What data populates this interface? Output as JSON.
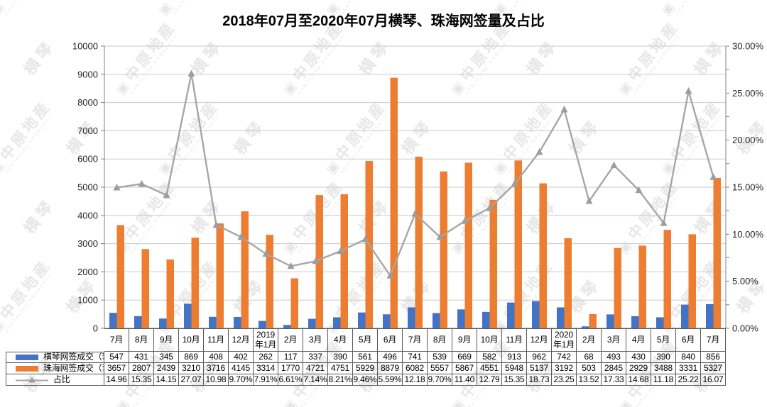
{
  "title": "2018年07月至2020年07月横琴、珠海网签量及占比",
  "watermark": {
    "logo_icon": "watermark-logo-icon",
    "brand": "中原地産",
    "brand_sub": "CENTALINE PROPERTY",
    "region": "横琴",
    "color": "#e7e7e7"
  },
  "colors": {
    "hengqin_bar": "#4472C4",
    "zhuhai_bar": "#ED7D31",
    "ratio_line": "#A6A6A6",
    "ratio_marker": "#9D9D9D",
    "gridline": "#C9C9C9",
    "axis_line": "#808080",
    "axis_text": "#262626",
    "table_border": "#595959"
  },
  "chart_data": {
    "type": "bar",
    "subtype": "combo-bar-line-dual-axis",
    "title": "2018年07月至2020年07月横琴、珠海网签量及占比",
    "categories": [
      "7月",
      "8月",
      "9月",
      "10月",
      "11月",
      "12月",
      "2019年1月",
      "2月",
      "3月",
      "4月",
      "5月",
      "6月",
      "7月",
      "8月",
      "9月",
      "10月",
      "11月",
      "12月",
      "2020年1月",
      "2月",
      "3月",
      "4月",
      "5月",
      "6月",
      "7月"
    ],
    "series": [
      {
        "name": "横琴网签成交（套）",
        "type": "bar",
        "axis": "left",
        "color": "#4472C4",
        "values": [
          547,
          431,
          345,
          869,
          408,
          402,
          262,
          117,
          337,
          390,
          561,
          496,
          741,
          539,
          669,
          582,
          913,
          962,
          742,
          68,
          493,
          430,
          390,
          840,
          856
        ]
      },
      {
        "name": "珠海网签成交（套）",
        "type": "bar",
        "axis": "left",
        "color": "#ED7D31",
        "values": [
          3657,
          2807,
          2439,
          3210,
          3716,
          4145,
          3314,
          1770,
          4721,
          4751,
          5929,
          8879,
          6082,
          5557,
          5867,
          4551,
          5948,
          5137,
          3192,
          503,
          2845,
          2929,
          3488,
          3331,
          5327
        ]
      },
      {
        "name": "占比",
        "type": "line",
        "axis": "right",
        "color": "#A6A6A6",
        "marker": "triangle",
        "values": [
          14.96,
          15.35,
          14.15,
          27.07,
          10.98,
          9.7,
          7.91,
          6.61,
          7.14,
          8.21,
          9.46,
          5.59,
          12.18,
          9.7,
          11.4,
          12.79,
          15.35,
          18.73,
          23.25,
          13.52,
          17.33,
          14.68,
          11.18,
          25.22,
          16.07
        ],
        "display": [
          "14.96",
          "15.35",
          "14.15",
          "27.07",
          "10.98",
          "9.70%",
          "7.91%",
          "6.61%",
          "7.14%",
          "8.21%",
          "9.46%",
          "5.59%",
          "12.18",
          "9.70%",
          "11.40",
          "12.79",
          "15.35",
          "18.73",
          "23.25",
          "13.52",
          "17.33",
          "14.68",
          "11.18",
          "25.22",
          "16.07"
        ]
      }
    ],
    "left_axis": {
      "min": 0,
      "max": 10000,
      "step": 1000,
      "tick_labels": [
        "0",
        "1000",
        "2000",
        "3000",
        "4000",
        "5000",
        "6000",
        "7000",
        "8000",
        "9000",
        "10000"
      ]
    },
    "right_axis": {
      "min": 0,
      "max": 30,
      "step": 5,
      "minor_step": 2.5,
      "tick_labels": [
        "0.00%",
        "5.00%",
        "10.00%",
        "15.00%",
        "20.00%",
        "25.00%",
        "30.00%"
      ]
    },
    "grid": true,
    "legend_position": "table-left",
    "xlabel": "",
    "ylabel": ""
  }
}
